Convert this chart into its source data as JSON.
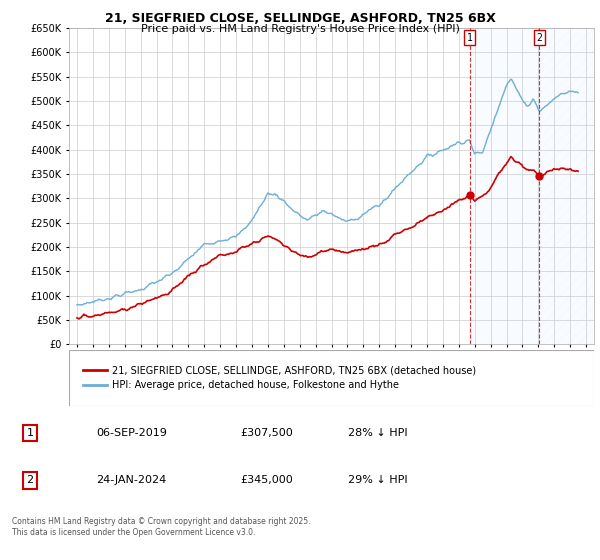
{
  "title": "21, SIEGFRIED CLOSE, SELLINDGE, ASHFORD, TN25 6BX",
  "subtitle": "Price paid vs. HM Land Registry's House Price Index (HPI)",
  "legend_line1": "21, SIEGFRIED CLOSE, SELLINDGE, ASHFORD, TN25 6BX (detached house)",
  "legend_line2": "HPI: Average price, detached house, Folkestone and Hythe",
  "annotation1_date": "06-SEP-2019",
  "annotation1_price": "£307,500",
  "annotation1_hpi": "28% ↓ HPI",
  "annotation2_date": "24-JAN-2024",
  "annotation2_price": "£345,000",
  "annotation2_hpi": "29% ↓ HPI",
  "footnote": "Contains HM Land Registry data © Crown copyright and database right 2025.\nThis data is licensed under the Open Government Licence v3.0.",
  "hpi_color": "#6baed6",
  "price_color": "#cc0000",
  "vline_color": "#cc0000",
  "highlight_color": "#ddeeff",
  "grid_color": "#cccccc",
  "ylim": [
    0,
    650000
  ],
  "yticks": [
    0,
    50000,
    100000,
    150000,
    200000,
    250000,
    300000,
    350000,
    400000,
    450000,
    500000,
    550000,
    600000,
    650000
  ],
  "xlim_start": 1994.5,
  "xlim_end": 2027.5,
  "sale1_x": 2019.69,
  "sale2_x": 2024.07,
  "marker1_y": 307500,
  "marker2_y": 345000
}
